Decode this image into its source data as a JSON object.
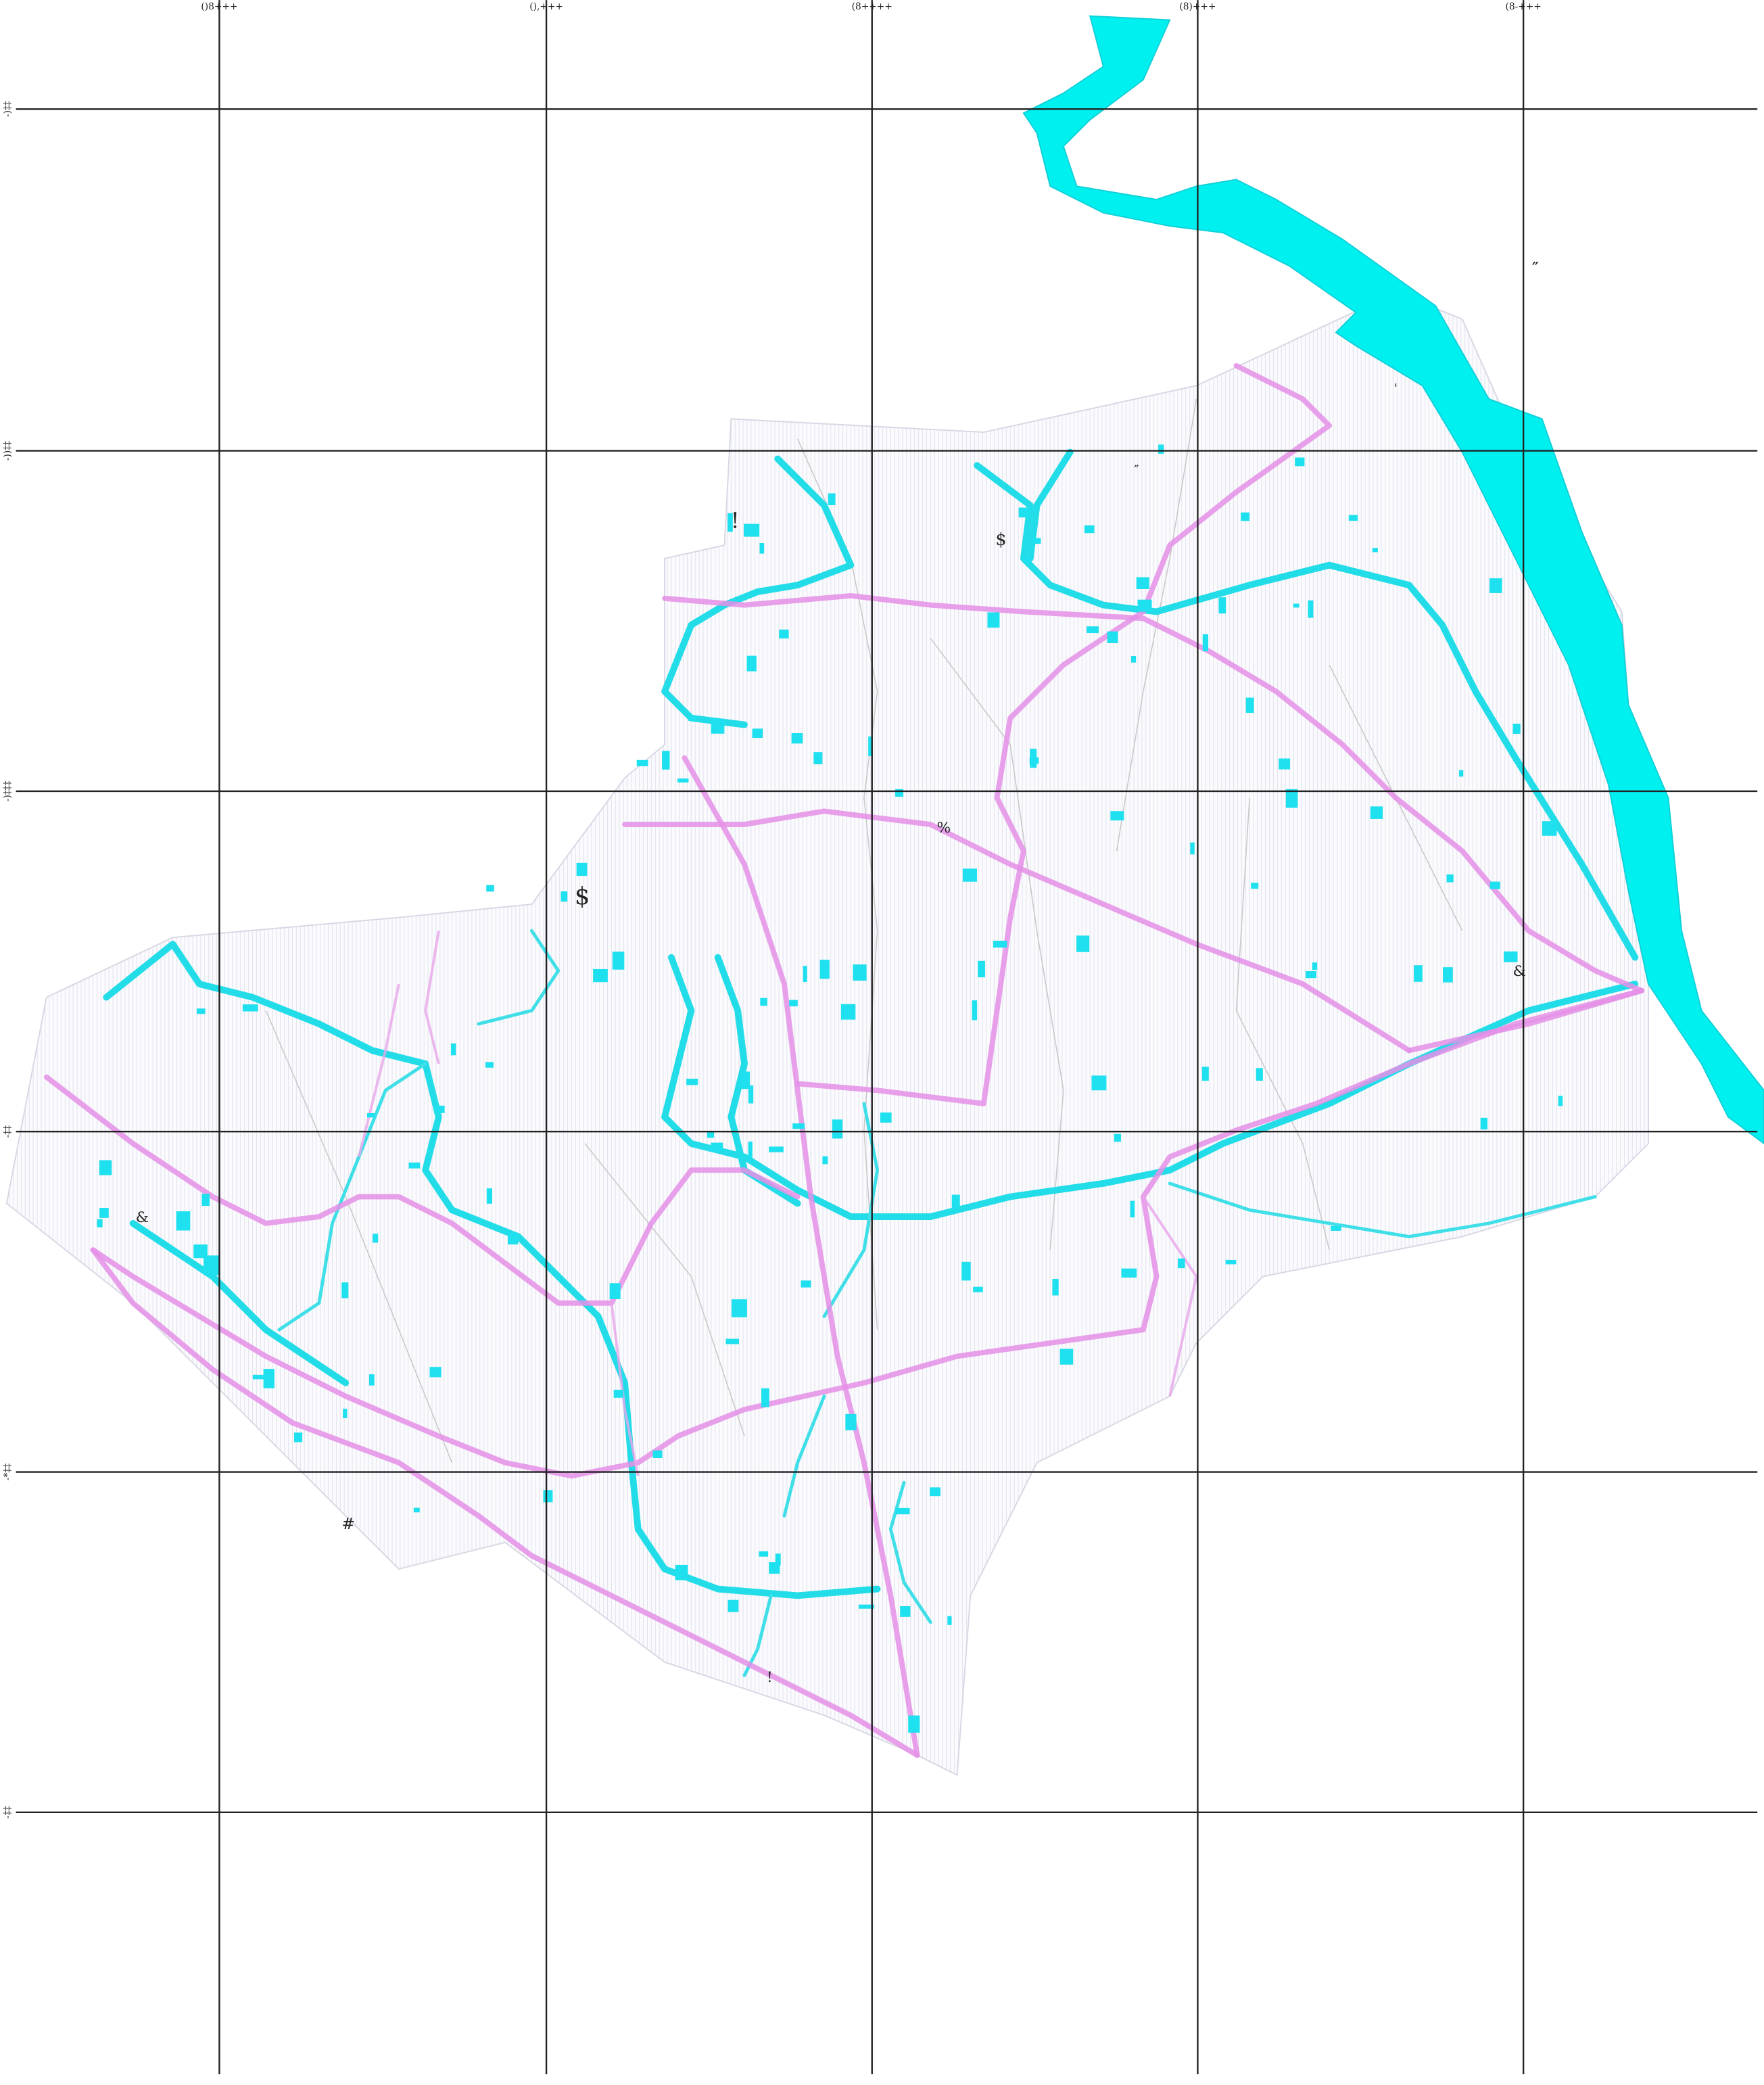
{
  "top_labels": [
    "()8+++",
    "(),+++",
    "(8++++",
    "(8)+++",
    "(8-+++"
  ],
  "left_labels": [
    "-)‡‡",
    "-))‡‡",
    "-)‡‡‡",
    "-‡‡",
    "-*‡‡",
    "-‡‡"
  ],
  "map_labels": [
    "!",
    "$",
    "″",
    "'",
    "″",
    "%",
    "$",
    "&",
    "&",
    "#",
    "!"
  ]
}
